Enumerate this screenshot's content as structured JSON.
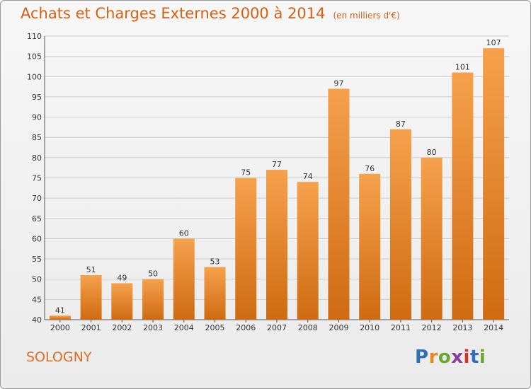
{
  "header": {
    "title": "Achats et Charges Externes 2000 à 2014",
    "unit": "(en milliers d'€)"
  },
  "commune": "SOLOGNY",
  "logo": {
    "text": "Proxiti"
  },
  "colors": {
    "title": "#d85f12",
    "bar_light": "#f6a14c",
    "bar_dark": "#cf6b12",
    "grid": "#cccccc"
  },
  "chart_data": {
    "type": "bar",
    "title": "Achats et Charges Externes 2000 à 2014",
    "subtitle": "(en milliers d'€)",
    "xlabel": "",
    "ylabel": "",
    "categories": [
      "2000",
      "2001",
      "2002",
      "2003",
      "2004",
      "2005",
      "2006",
      "2007",
      "2008",
      "2009",
      "2010",
      "2011",
      "2012",
      "2013",
      "2014"
    ],
    "values": [
      41,
      51,
      49,
      50,
      60,
      53,
      75,
      77,
      74,
      97,
      76,
      87,
      80,
      101,
      107
    ],
    "ylim": [
      40,
      110
    ],
    "yticks": [
      40,
      45,
      50,
      55,
      60,
      65,
      70,
      75,
      80,
      85,
      90,
      95,
      100,
      105,
      110
    ],
    "grid": true,
    "legend": "none"
  }
}
